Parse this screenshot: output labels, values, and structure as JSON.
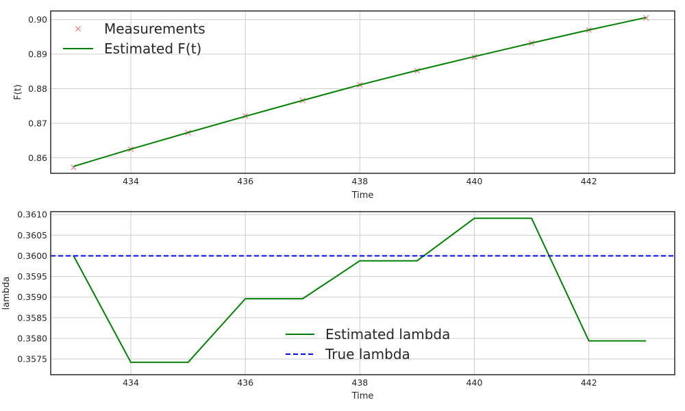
{
  "chart_data": [
    {
      "type": "line",
      "xlabel": "Time",
      "ylabel": "F(t)",
      "xlim": [
        432.6,
        443.5
      ],
      "ylim": [
        0.8555,
        0.9025
      ],
      "xticks": [
        434,
        436,
        438,
        440,
        442
      ],
      "xtick_labels": [
        "434",
        "436",
        "438",
        "440",
        "442"
      ],
      "yticks": [
        0.86,
        0.87,
        0.88,
        0.89,
        0.9
      ],
      "ytick_labels": [
        "0.86",
        "0.87",
        "0.88",
        "0.89",
        "0.90"
      ],
      "grid": true,
      "legend_position": "upper-left",
      "series": [
        {
          "name": "Measurements",
          "kind": "markers",
          "marker": "x",
          "color": "#f08080",
          "x": [
            433,
            434,
            435,
            436,
            437,
            438,
            439,
            440,
            441,
            442,
            443
          ],
          "y": [
            0.8572,
            0.8625,
            0.8673,
            0.8721,
            0.8766,
            0.8811,
            0.8852,
            0.8892,
            0.8932,
            0.897,
            0.9005
          ]
        },
        {
          "name": "Estimated F(t)",
          "kind": "line",
          "color": "#008000",
          "x": [
            433,
            434,
            435,
            436,
            437,
            438,
            439,
            440,
            441,
            442,
            443
          ],
          "y": [
            0.8575,
            0.8625,
            0.8673,
            0.872,
            0.8766,
            0.8811,
            0.8853,
            0.8893,
            0.8932,
            0.897,
            0.9006
          ]
        }
      ]
    },
    {
      "type": "line",
      "xlabel": "Time",
      "ylabel": "lambda",
      "xlim": [
        432.6,
        443.5
      ],
      "ylim": [
        0.35712,
        0.36107
      ],
      "xticks": [
        434,
        436,
        438,
        440,
        442
      ],
      "xtick_labels": [
        "434",
        "436",
        "438",
        "440",
        "442"
      ],
      "yticks": [
        0.3575,
        0.358,
        0.3585,
        0.359,
        0.3595,
        0.36,
        0.3605,
        0.361
      ],
      "ytick_labels": [
        "0.3575",
        "0.3580",
        "0.3585",
        "0.3590",
        "0.3595",
        "0.3600",
        "0.3605",
        "0.3610"
      ],
      "grid": true,
      "legend_position": "lower-center",
      "series": [
        {
          "name": "Estimated lambda",
          "kind": "line",
          "color": "#008000",
          "x": [
            433,
            434,
            435,
            436,
            437,
            438,
            439,
            440,
            441,
            442,
            443
          ],
          "y": [
            0.36,
            0.35742,
            0.35742,
            0.35896,
            0.35896,
            0.35988,
            0.35988,
            0.36091,
            0.36091,
            0.35794,
            0.35794
          ]
        },
        {
          "name": "True lambda",
          "kind": "hline",
          "color": "#0000ff",
          "dash": "dashed",
          "y": 0.36
        }
      ]
    }
  ]
}
